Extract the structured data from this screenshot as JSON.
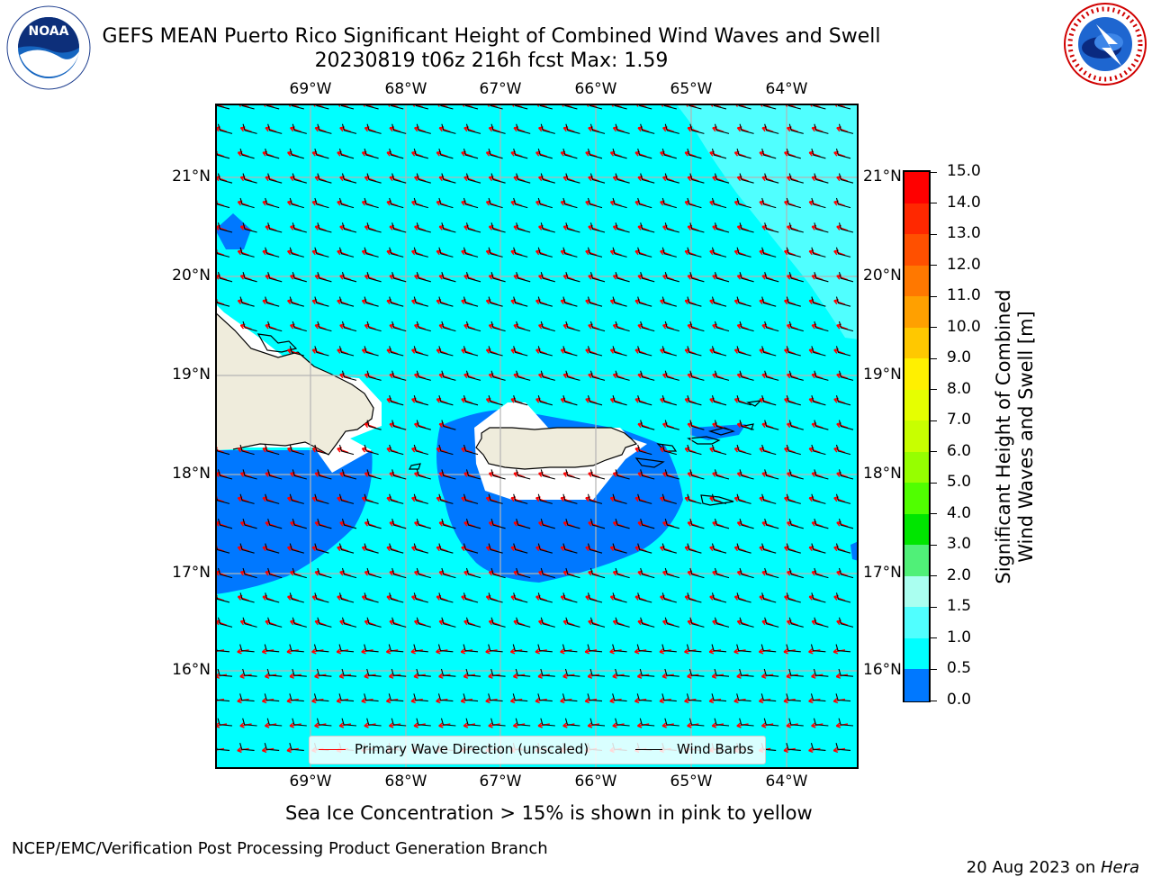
{
  "header": {
    "title_line1": "GEFS MEAN Puerto Rico Significant Height of Combined Wind Waves and Swell",
    "title_line2": "20230819 t06z 216h fcst   Max: 1.59"
  },
  "logos": {
    "noaa_text": "NOAA",
    "noaa_ring": "NATIONAL OCEANIC AND ATMOSPHERIC ADMINISTRATION · U.S. DEPARTMENT OF COMMERCE",
    "nws_ring": "NATIONAL WEATHER SERVICE"
  },
  "axes": {
    "lon_ticks": [
      "69°W",
      "68°W",
      "67°W",
      "66°W",
      "65°W",
      "64°W"
    ],
    "lat_ticks": [
      "21°N",
      "20°N",
      "19°N",
      "18°N",
      "17°N",
      "16°N"
    ]
  },
  "legend": {
    "primary_wave": "Primary Wave Direction (unscaled)",
    "wind_barbs": "Wind Barbs"
  },
  "colorbar": {
    "label_line1": "Significant Height of Combined",
    "label_line2": "Wind Waves and Swell [m]",
    "ticks": [
      "15.0",
      "14.0",
      "13.0",
      "12.0",
      "11.0",
      "10.0",
      "9.0",
      "8.0",
      "7.0",
      "6.0",
      "5.0",
      "4.0",
      "3.0",
      "2.0",
      "1.5",
      "1.0",
      "0.5",
      "0.0"
    ],
    "colors": [
      "#ff0000",
      "#ff2800",
      "#ff5000",
      "#ff7800",
      "#ffa000",
      "#ffc800",
      "#fff000",
      "#e6ff00",
      "#c8ff00",
      "#96ff00",
      "#50ff00",
      "#00e600",
      "#50f078",
      "#aafff0",
      "#50ffff",
      "#00ffff",
      "#0078ff",
      "#0000ff"
    ]
  },
  "map_colors": {
    "sea": "#00ffff",
    "sea_light": "#50ffff",
    "low_wave": "#0078ff",
    "land": "#efecdc",
    "masked": "#ffffff",
    "arrow": "#ff0000",
    "barb": "#000000"
  },
  "footer": {
    "ice_note": "Sea Ice Concentration > 15% is shown in pink to yellow",
    "producer": "NCEP/EMC/Verification Post Processing Product Generation Branch",
    "date": "20 Aug 2023 on ",
    "machine": "Hera"
  }
}
